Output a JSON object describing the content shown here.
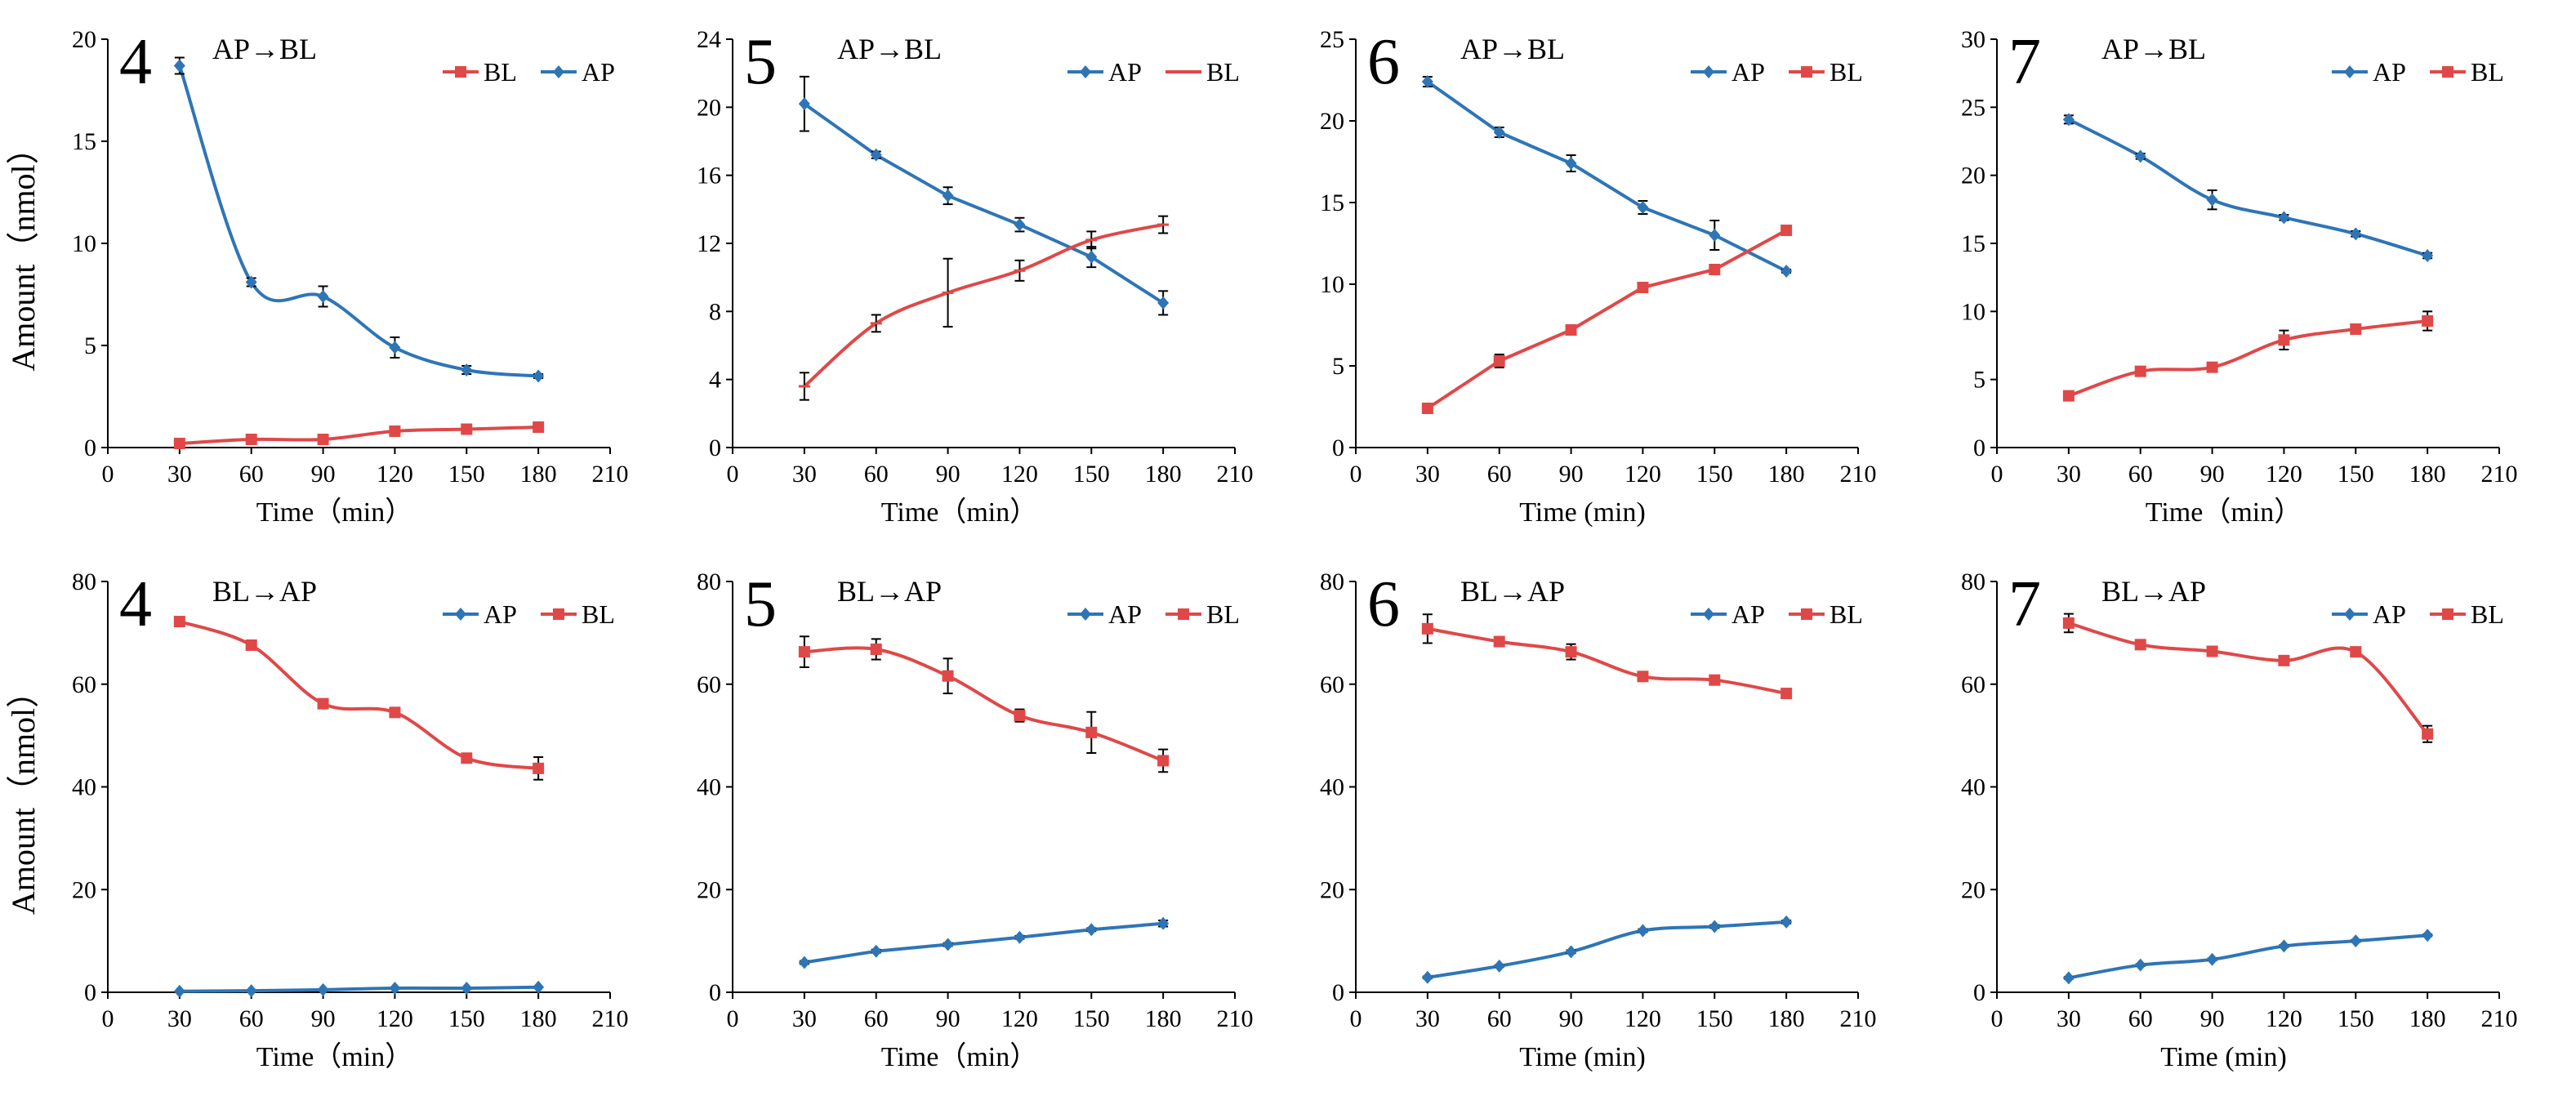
{
  "colors": {
    "AP": "#2E75B6",
    "BL": "#E04848"
  },
  "chart_data": [
    {
      "type": "line",
      "panel_number": "4",
      "title": "AP→BL",
      "xlabel": "Time（min）",
      "ylabel": "Amount（nmol）",
      "xlim": [
        0,
        210
      ],
      "xticks": [
        0,
        30,
        60,
        90,
        120,
        150,
        180,
        210
      ],
      "ylim": [
        0,
        20
      ],
      "yticks": [
        0,
        5,
        10,
        15,
        20
      ],
      "x": [
        30,
        60,
        90,
        120,
        150,
        180
      ],
      "legend": [
        "BL",
        "AP"
      ],
      "series": [
        {
          "name": "AP",
          "marker": "diamond",
          "smooth": true,
          "values": [
            18.7,
            8.1,
            7.4,
            4.9,
            3.8,
            3.5
          ],
          "errors": [
            0.4,
            0.2,
            0.5,
            0.5,
            0.2,
            0.1
          ]
        },
        {
          "name": "BL",
          "marker": "square",
          "smooth": true,
          "values": [
            0.2,
            0.4,
            0.4,
            0.8,
            0.9,
            1.0
          ],
          "errors": [
            0,
            0,
            0,
            0,
            0,
            0
          ]
        }
      ]
    },
    {
      "type": "line",
      "panel_number": "5",
      "title": "AP→BL",
      "xlabel": "Time（min）",
      "ylabel": "",
      "xlim": [
        0,
        210
      ],
      "xticks": [
        0,
        30,
        60,
        90,
        120,
        150,
        180,
        210
      ],
      "ylim": [
        0,
        24
      ],
      "yticks": [
        0,
        4,
        8,
        12,
        16,
        20,
        24
      ],
      "x": [
        30,
        60,
        90,
        120,
        150,
        180
      ],
      "legend": [
        "AP",
        "BL"
      ],
      "series": [
        {
          "name": "AP",
          "marker": "diamond",
          "smooth": false,
          "values": [
            20.2,
            17.2,
            14.8,
            13.1,
            11.2,
            8.5
          ],
          "errors": [
            1.6,
            0.2,
            0.5,
            0.4,
            0.6,
            0.7
          ]
        },
        {
          "name": "BL",
          "marker": "tick",
          "smooth": true,
          "values": [
            3.6,
            7.3,
            9.1,
            10.4,
            12.2,
            13.1
          ],
          "errors": [
            0.8,
            0.5,
            2.0,
            0.6,
            0.5,
            0.5
          ]
        }
      ]
    },
    {
      "type": "line",
      "panel_number": "6",
      "title": "AP→BL",
      "xlabel": "Time (min)",
      "ylabel": "",
      "xlim": [
        0,
        210
      ],
      "xticks": [
        0,
        30,
        60,
        90,
        120,
        150,
        180,
        210
      ],
      "ylim": [
        0,
        25
      ],
      "yticks": [
        0,
        5,
        10,
        15,
        20,
        25
      ],
      "x": [
        30,
        60,
        90,
        120,
        150,
        180
      ],
      "legend": [
        "AP",
        "BL"
      ],
      "series": [
        {
          "name": "AP",
          "marker": "diamond",
          "smooth": false,
          "values": [
            22.4,
            19.3,
            17.4,
            14.7,
            13.0,
            10.8
          ],
          "errors": [
            0.3,
            0.3,
            0.5,
            0.4,
            0.9,
            0.1
          ]
        },
        {
          "name": "BL",
          "marker": "square",
          "smooth": false,
          "values": [
            2.4,
            5.3,
            7.2,
            9.8,
            10.9,
            13.3
          ],
          "errors": [
            0.2,
            0.4,
            0.2,
            0.3,
            0.2,
            0.2
          ]
        }
      ]
    },
    {
      "type": "line",
      "panel_number": "7",
      "title": "AP→BL",
      "xlabel": "Time（min）",
      "ylabel": "",
      "xlim": [
        0,
        210
      ],
      "xticks": [
        0,
        30,
        60,
        90,
        120,
        150,
        180,
        210
      ],
      "ylim": [
        0,
        30
      ],
      "yticks": [
        0,
        5,
        10,
        15,
        20,
        25,
        30
      ],
      "x": [
        30,
        60,
        90,
        120,
        150,
        180
      ],
      "legend": [
        "AP",
        "BL"
      ],
      "series": [
        {
          "name": "AP",
          "marker": "diamond",
          "smooth": true,
          "values": [
            24.1,
            21.4,
            18.2,
            16.9,
            15.7,
            14.1
          ],
          "errors": [
            0.3,
            0.2,
            0.7,
            0.2,
            0.2,
            0.2
          ]
        },
        {
          "name": "BL",
          "marker": "square",
          "smooth": true,
          "values": [
            3.8,
            5.6,
            5.9,
            7.9,
            8.7,
            9.3
          ],
          "errors": [
            0.2,
            0.3,
            0.3,
            0.7,
            0.3,
            0.7
          ]
        }
      ]
    },
    {
      "type": "line",
      "panel_number": "4",
      "title": "BL→AP",
      "xlabel": "Time（min）",
      "ylabel": "Amount（nmol）",
      "xlim": [
        0,
        210
      ],
      "xticks": [
        0,
        30,
        60,
        90,
        120,
        150,
        180,
        210
      ],
      "ylim": [
        0,
        80
      ],
      "yticks": [
        0,
        20,
        40,
        60,
        80
      ],
      "x": [
        30,
        60,
        90,
        120,
        150,
        180
      ],
      "legend": [
        "AP",
        "BL"
      ],
      "series": [
        {
          "name": "AP",
          "marker": "diamond",
          "smooth": true,
          "values": [
            0.2,
            0.3,
            0.5,
            0.8,
            0.8,
            1.0
          ],
          "errors": [
            0,
            0,
            0,
            0,
            0,
            0
          ]
        },
        {
          "name": "BL",
          "marker": "square",
          "smooth": true,
          "values": [
            72.2,
            67.6,
            56.2,
            54.5,
            45.6,
            43.6
          ],
          "errors": [
            0.5,
            0.6,
            0.6,
            0.6,
            0.8,
            2.2
          ]
        }
      ]
    },
    {
      "type": "line",
      "panel_number": "5",
      "title": "BL→AP",
      "xlabel": "Time（min）",
      "ylabel": "",
      "xlim": [
        0,
        210
      ],
      "xticks": [
        0,
        30,
        60,
        90,
        120,
        150,
        180,
        210
      ],
      "ylim": [
        0,
        80
      ],
      "yticks": [
        0,
        20,
        40,
        60,
        80
      ],
      "x": [
        30,
        60,
        90,
        120,
        150,
        180
      ],
      "legend": [
        "AP",
        "BL"
      ],
      "series": [
        {
          "name": "AP",
          "marker": "diamond",
          "smooth": false,
          "values": [
            5.8,
            8.0,
            9.3,
            10.7,
            12.2,
            13.4
          ],
          "errors": [
            0.3,
            0.3,
            0.3,
            0.3,
            0.3,
            0.6
          ]
        },
        {
          "name": "BL",
          "marker": "square",
          "smooth": true,
          "values": [
            66.3,
            66.8,
            61.6,
            53.9,
            50.6,
            45.1
          ],
          "errors": [
            3.0,
            2.0,
            3.4,
            1.2,
            4.0,
            2.2
          ]
        }
      ]
    },
    {
      "type": "line",
      "panel_number": "6",
      "title": "BL→AP",
      "xlabel": "Time (min)",
      "ylabel": "",
      "xlim": [
        0,
        210
      ],
      "xticks": [
        0,
        30,
        60,
        90,
        120,
        150,
        180,
        210
      ],
      "ylim": [
        0,
        80
      ],
      "yticks": [
        0,
        20,
        40,
        60,
        80
      ],
      "x": [
        30,
        60,
        90,
        120,
        150,
        180
      ],
      "legend": [
        "AP",
        "BL"
      ],
      "series": [
        {
          "name": "AP",
          "marker": "diamond",
          "smooth": true,
          "values": [
            2.9,
            5.1,
            7.9,
            12.0,
            12.8,
            13.7
          ],
          "errors": [
            0.2,
            0.2,
            0.3,
            0.3,
            0.3,
            0.3
          ]
        },
        {
          "name": "BL",
          "marker": "square",
          "smooth": true,
          "values": [
            70.8,
            68.3,
            66.3,
            61.5,
            60.8,
            58.2
          ],
          "errors": [
            2.8,
            0.8,
            1.5,
            0.8,
            0.6,
            0.8
          ]
        }
      ]
    },
    {
      "type": "line",
      "panel_number": "7",
      "title": "BL→AP",
      "xlabel": "Time (min)",
      "ylabel": "",
      "xlim": [
        0,
        210
      ],
      "xticks": [
        0,
        30,
        60,
        90,
        120,
        150,
        180,
        210
      ],
      "ylim": [
        0,
        80
      ],
      "yticks": [
        0,
        20,
        40,
        60,
        80
      ],
      "x": [
        30,
        60,
        90,
        120,
        150,
        180
      ],
      "legend": [
        "AP",
        "BL"
      ],
      "series": [
        {
          "name": "AP",
          "marker": "diamond",
          "smooth": true,
          "values": [
            2.8,
            5.3,
            6.4,
            9.0,
            10.0,
            11.1
          ],
          "errors": [
            0.2,
            0.2,
            0.2,
            0.2,
            0.2,
            0.2
          ]
        },
        {
          "name": "BL",
          "marker": "square",
          "smooth": true,
          "values": [
            71.9,
            67.7,
            66.4,
            64.6,
            66.3,
            50.3
          ],
          "errors": [
            1.8,
            0.6,
            0.6,
            0.6,
            0.6,
            1.6
          ]
        }
      ]
    }
  ]
}
